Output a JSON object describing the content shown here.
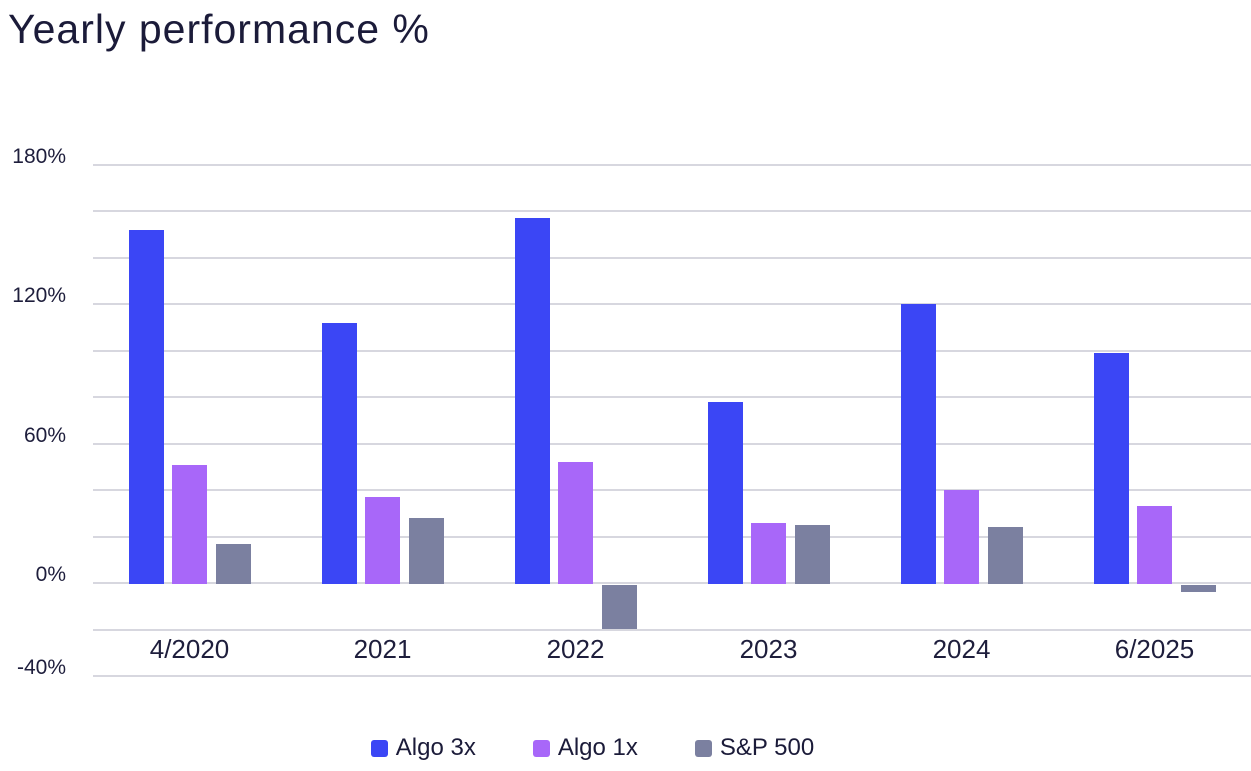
{
  "title": "Yearly performance %",
  "chart_data": {
    "type": "bar",
    "title": "Yearly performance %",
    "categories": [
      "4/2020",
      "2021",
      "2022",
      "2023",
      "2024",
      "6/2025"
    ],
    "series": [
      {
        "name": "Algo 3x",
        "color": "#3b46f5",
        "values": [
          152,
          112,
          157,
          78,
          120,
          99
        ]
      },
      {
        "name": "Algo 1x",
        "color": "#a867f9",
        "values": [
          51,
          37,
          52,
          26,
          40,
          33
        ]
      },
      {
        "name": "S&P 500",
        "color": "#7b80a0",
        "values": [
          17,
          28,
          -19,
          25,
          24,
          -3
        ]
      }
    ],
    "xlabel": "",
    "ylabel": "",
    "ylim": [
      -40,
      180
    ],
    "gridline_step": 20,
    "grid": true,
    "y_tick_labels": [
      {
        "text": "180%",
        "value": 180
      },
      {
        "text": "120%",
        "value": 120
      },
      {
        "text": "60%",
        "value": 60
      },
      {
        "text": "0%",
        "value": 0
      },
      {
        "text": "-40%",
        "value": -40
      }
    ],
    "legend_position": "bottom",
    "background_color": "#ffffff",
    "gridline_color": "#d7d7df",
    "text_color": "#1e1e3c",
    "title_color": "#1b1b39"
  }
}
